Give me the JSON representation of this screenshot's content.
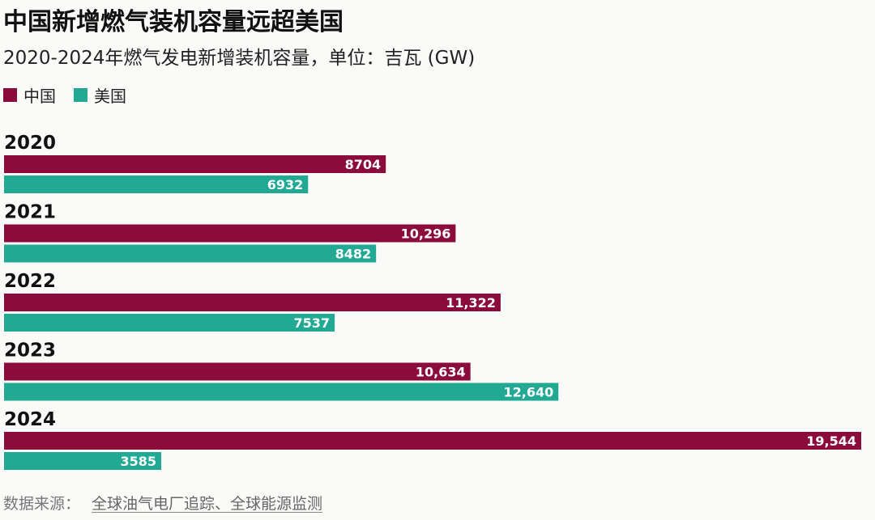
{
  "header": {
    "title": "中国新增燃气装机容量远超美国",
    "subtitle": "2020-2024年燃气发电新增装机容量，单位：吉瓦 (GW)"
  },
  "legend": [
    {
      "label": "中国",
      "color": "#8b0c3a"
    },
    {
      "label": "美国",
      "color": "#22a994"
    }
  ],
  "chart_data": {
    "type": "bar",
    "orientation": "horizontal",
    "categories": [
      "2020",
      "2021",
      "2022",
      "2023",
      "2024"
    ],
    "series": [
      {
        "name": "中国",
        "color": "#8b0c3a",
        "values": [
          8704,
          10296,
          11322,
          10634,
          19544
        ],
        "labels": [
          "8704",
          "10,296",
          "11,322",
          "10,634",
          "19,544"
        ]
      },
      {
        "name": "美国",
        "color": "#22a994",
        "values": [
          6932,
          8482,
          7537,
          12640,
          3585
        ],
        "labels": [
          "6932",
          "8482",
          "7537",
          "12,640",
          "3585"
        ]
      }
    ],
    "title": "中国新增燃气装机容量远超美国",
    "grid": false,
    "legend_position": "top-left"
  },
  "footer": {
    "source_label": "数据来源：",
    "source_text": "全球油气电厂追踪、全球能源监测"
  }
}
